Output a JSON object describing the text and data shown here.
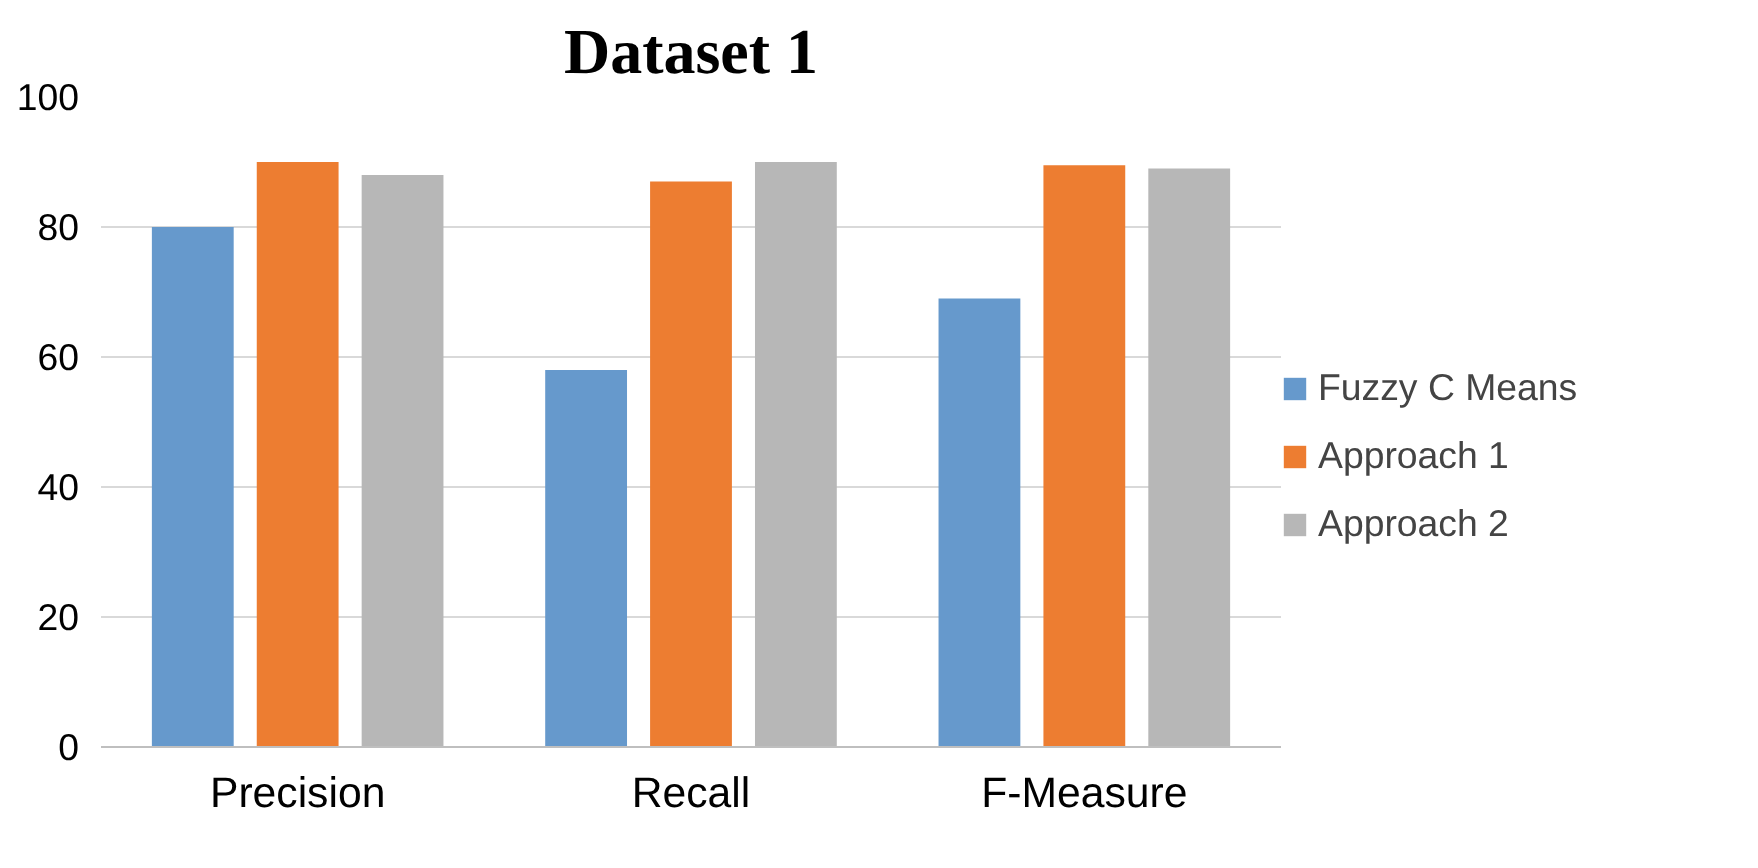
{
  "chart_data": {
    "type": "bar",
    "title": "Dataset 1",
    "categories": [
      "Precision",
      "Recall",
      "F-Measure"
    ],
    "series": [
      {
        "name": "Fuzzy C Means",
        "color": "#6699cc",
        "values": [
          80,
          58,
          69
        ]
      },
      {
        "name": "Approach 1",
        "color": "#ed7d31",
        "values": [
          90,
          87,
          89.5
        ]
      },
      {
        "name": "Approach 2",
        "color": "#b7b7b7",
        "values": [
          88,
          90,
          89
        ]
      }
    ],
    "ylim": [
      0,
      100
    ],
    "yticks": [
      0,
      20,
      40,
      60,
      80,
      100
    ],
    "grid": "y",
    "legend": "right"
  }
}
